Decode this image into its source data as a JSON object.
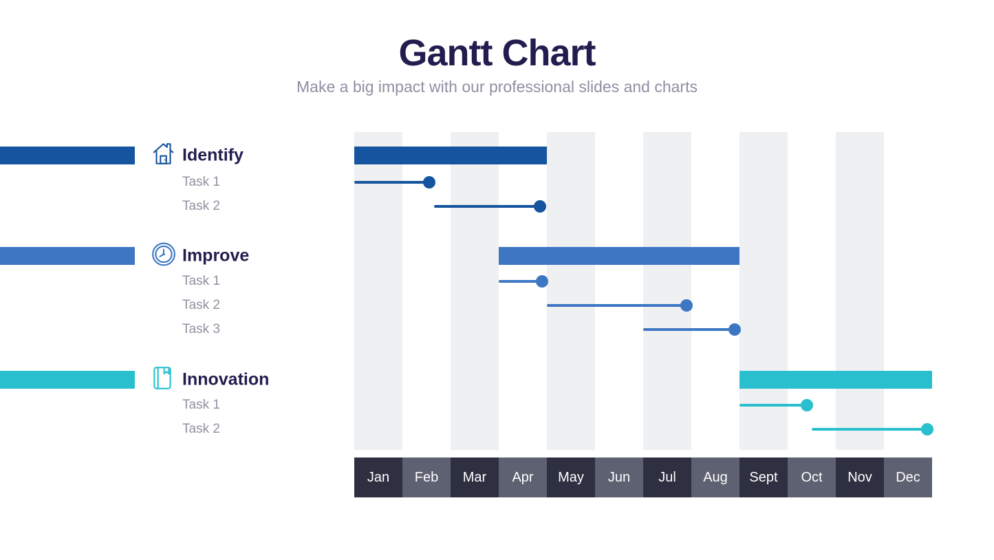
{
  "header": {
    "title": "Gantt Chart",
    "subtitle": "Make a big impact with our professional slides and charts"
  },
  "colors": {
    "title_text": "#221D4F",
    "subtitle_text": "#8F8FA3",
    "task_label_text": "#90909F",
    "column_stripe": "#EFF0F2",
    "axis_cell_dark": "#2E3042",
    "axis_cell_light": "#5D6171",
    "axis_text": "#FFFFFF",
    "background": "#FFFFFF"
  },
  "chart_data": {
    "type": "gantt",
    "title": "Gantt Chart",
    "x_axis_unit": "months",
    "months": [
      "Jan",
      "Feb",
      "Mar",
      "Apr",
      "May",
      "Jun",
      "Jul",
      "Aug",
      "Sept",
      "Oct",
      "Nov",
      "Dec"
    ],
    "x_range_months": [
      0,
      12
    ],
    "shaded_month_indices": [
      0,
      2,
      4,
      6,
      8,
      10
    ],
    "sections": [
      {
        "label": "Identify",
        "icon": "house-icon",
        "color": "#15549E",
        "bar": {
          "start": 0,
          "end": 4
        },
        "tasks": [
          {
            "label": "Task 1",
            "start": 0,
            "end": 1.55
          },
          {
            "label": "Task 2",
            "start": 1.65,
            "end": 3.85
          }
        ]
      },
      {
        "label": "Improve",
        "icon": "clock-icon",
        "color": "#3D77C4",
        "bar": {
          "start": 3,
          "end": 8
        },
        "tasks": [
          {
            "label": "Task 1",
            "start": 3,
            "end": 3.9
          },
          {
            "label": "Task 2",
            "start": 4,
            "end": 6.9
          },
          {
            "label": "Task 3",
            "start": 6,
            "end": 7.9
          }
        ]
      },
      {
        "label": "Innovation",
        "icon": "book-icon",
        "color": "#29BFCE",
        "bar": {
          "start": 8,
          "end": 12
        },
        "tasks": [
          {
            "label": "Task 1",
            "start": 8,
            "end": 9.4
          },
          {
            "label": "Task 2",
            "start": 9.5,
            "end": 11.9
          }
        ]
      }
    ]
  }
}
